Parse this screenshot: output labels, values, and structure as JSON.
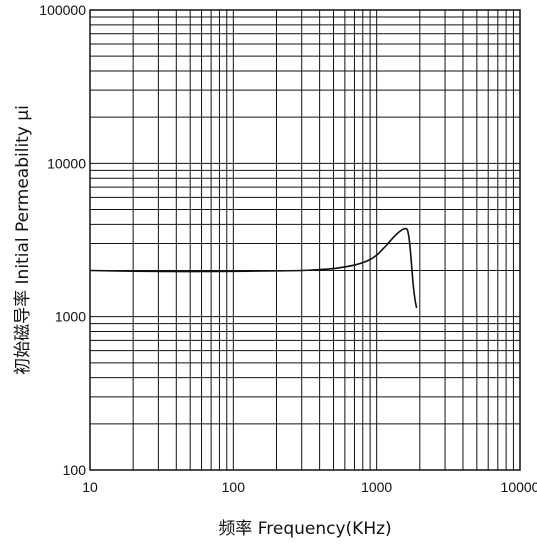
{
  "chart_data": {
    "type": "line",
    "xlabel": "频率  Frequency(KHz)",
    "ylabel": "初始磁导率  Initial  Permeability μi",
    "x_scale": "log",
    "y_scale": "log",
    "xlim": [
      10,
      10000
    ],
    "ylim": [
      100,
      100000
    ],
    "x_ticks": [
      "10",
      "100",
      "1000",
      "10000"
    ],
    "y_ticks": [
      "100",
      "1000",
      "10000",
      "100000"
    ],
    "grid": true,
    "series": [
      {
        "x": [
          10,
          20,
          50,
          100,
          200,
          300,
          400,
          500,
          600,
          700,
          800,
          900,
          1000,
          1100,
          1200,
          1300,
          1400,
          1500,
          1600,
          1650,
          1700,
          1750,
          1800,
          1850,
          1900
        ],
        "y": [
          2000,
          1980,
          1970,
          1975,
          1990,
          2000,
          2030,
          2060,
          2110,
          2170,
          2250,
          2360,
          2520,
          2750,
          3000,
          3270,
          3500,
          3680,
          3750,
          3600,
          3000,
          2200,
          1600,
          1300,
          1140
        ],
        "color": "#111111"
      }
    ]
  }
}
